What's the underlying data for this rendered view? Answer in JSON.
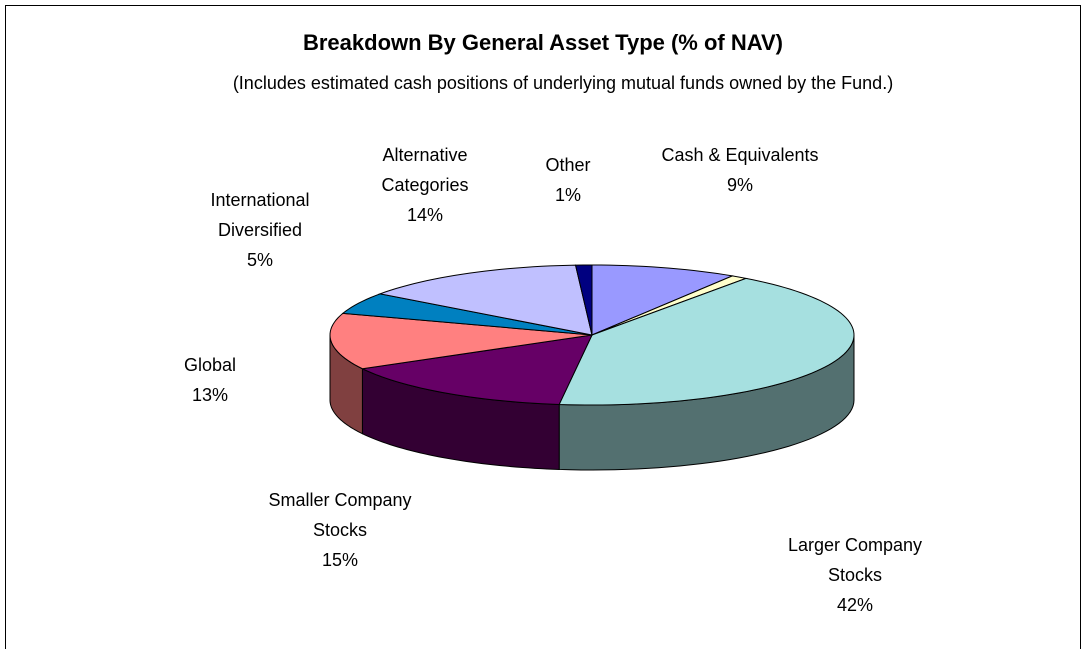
{
  "chart_data": {
    "type": "pie",
    "title": "Breakdown By General Asset Type (% of NAV)",
    "subtitle": "(Includes estimated cash positions of underlying mutual funds owned by the Fund.)",
    "categories": [
      "Cash & Equivalents",
      null,
      "Larger Company Stocks",
      "Smaller Company Stocks",
      "Global",
      "International Diversified",
      "Alternative Categories",
      "Other"
    ],
    "values": [
      9,
      1,
      42,
      15,
      13,
      5,
      14,
      1
    ],
    "value_labels": [
      "9%",
      null,
      "42%",
      "15%",
      "13%",
      "5%",
      "14%",
      "1%"
    ],
    "colors": [
      "#9999ff",
      "#ffffcc",
      "#a6e0e0",
      "#660066",
      "#ff8080",
      "#0080c0",
      "#c0c0ff",
      "#000080"
    ]
  }
}
